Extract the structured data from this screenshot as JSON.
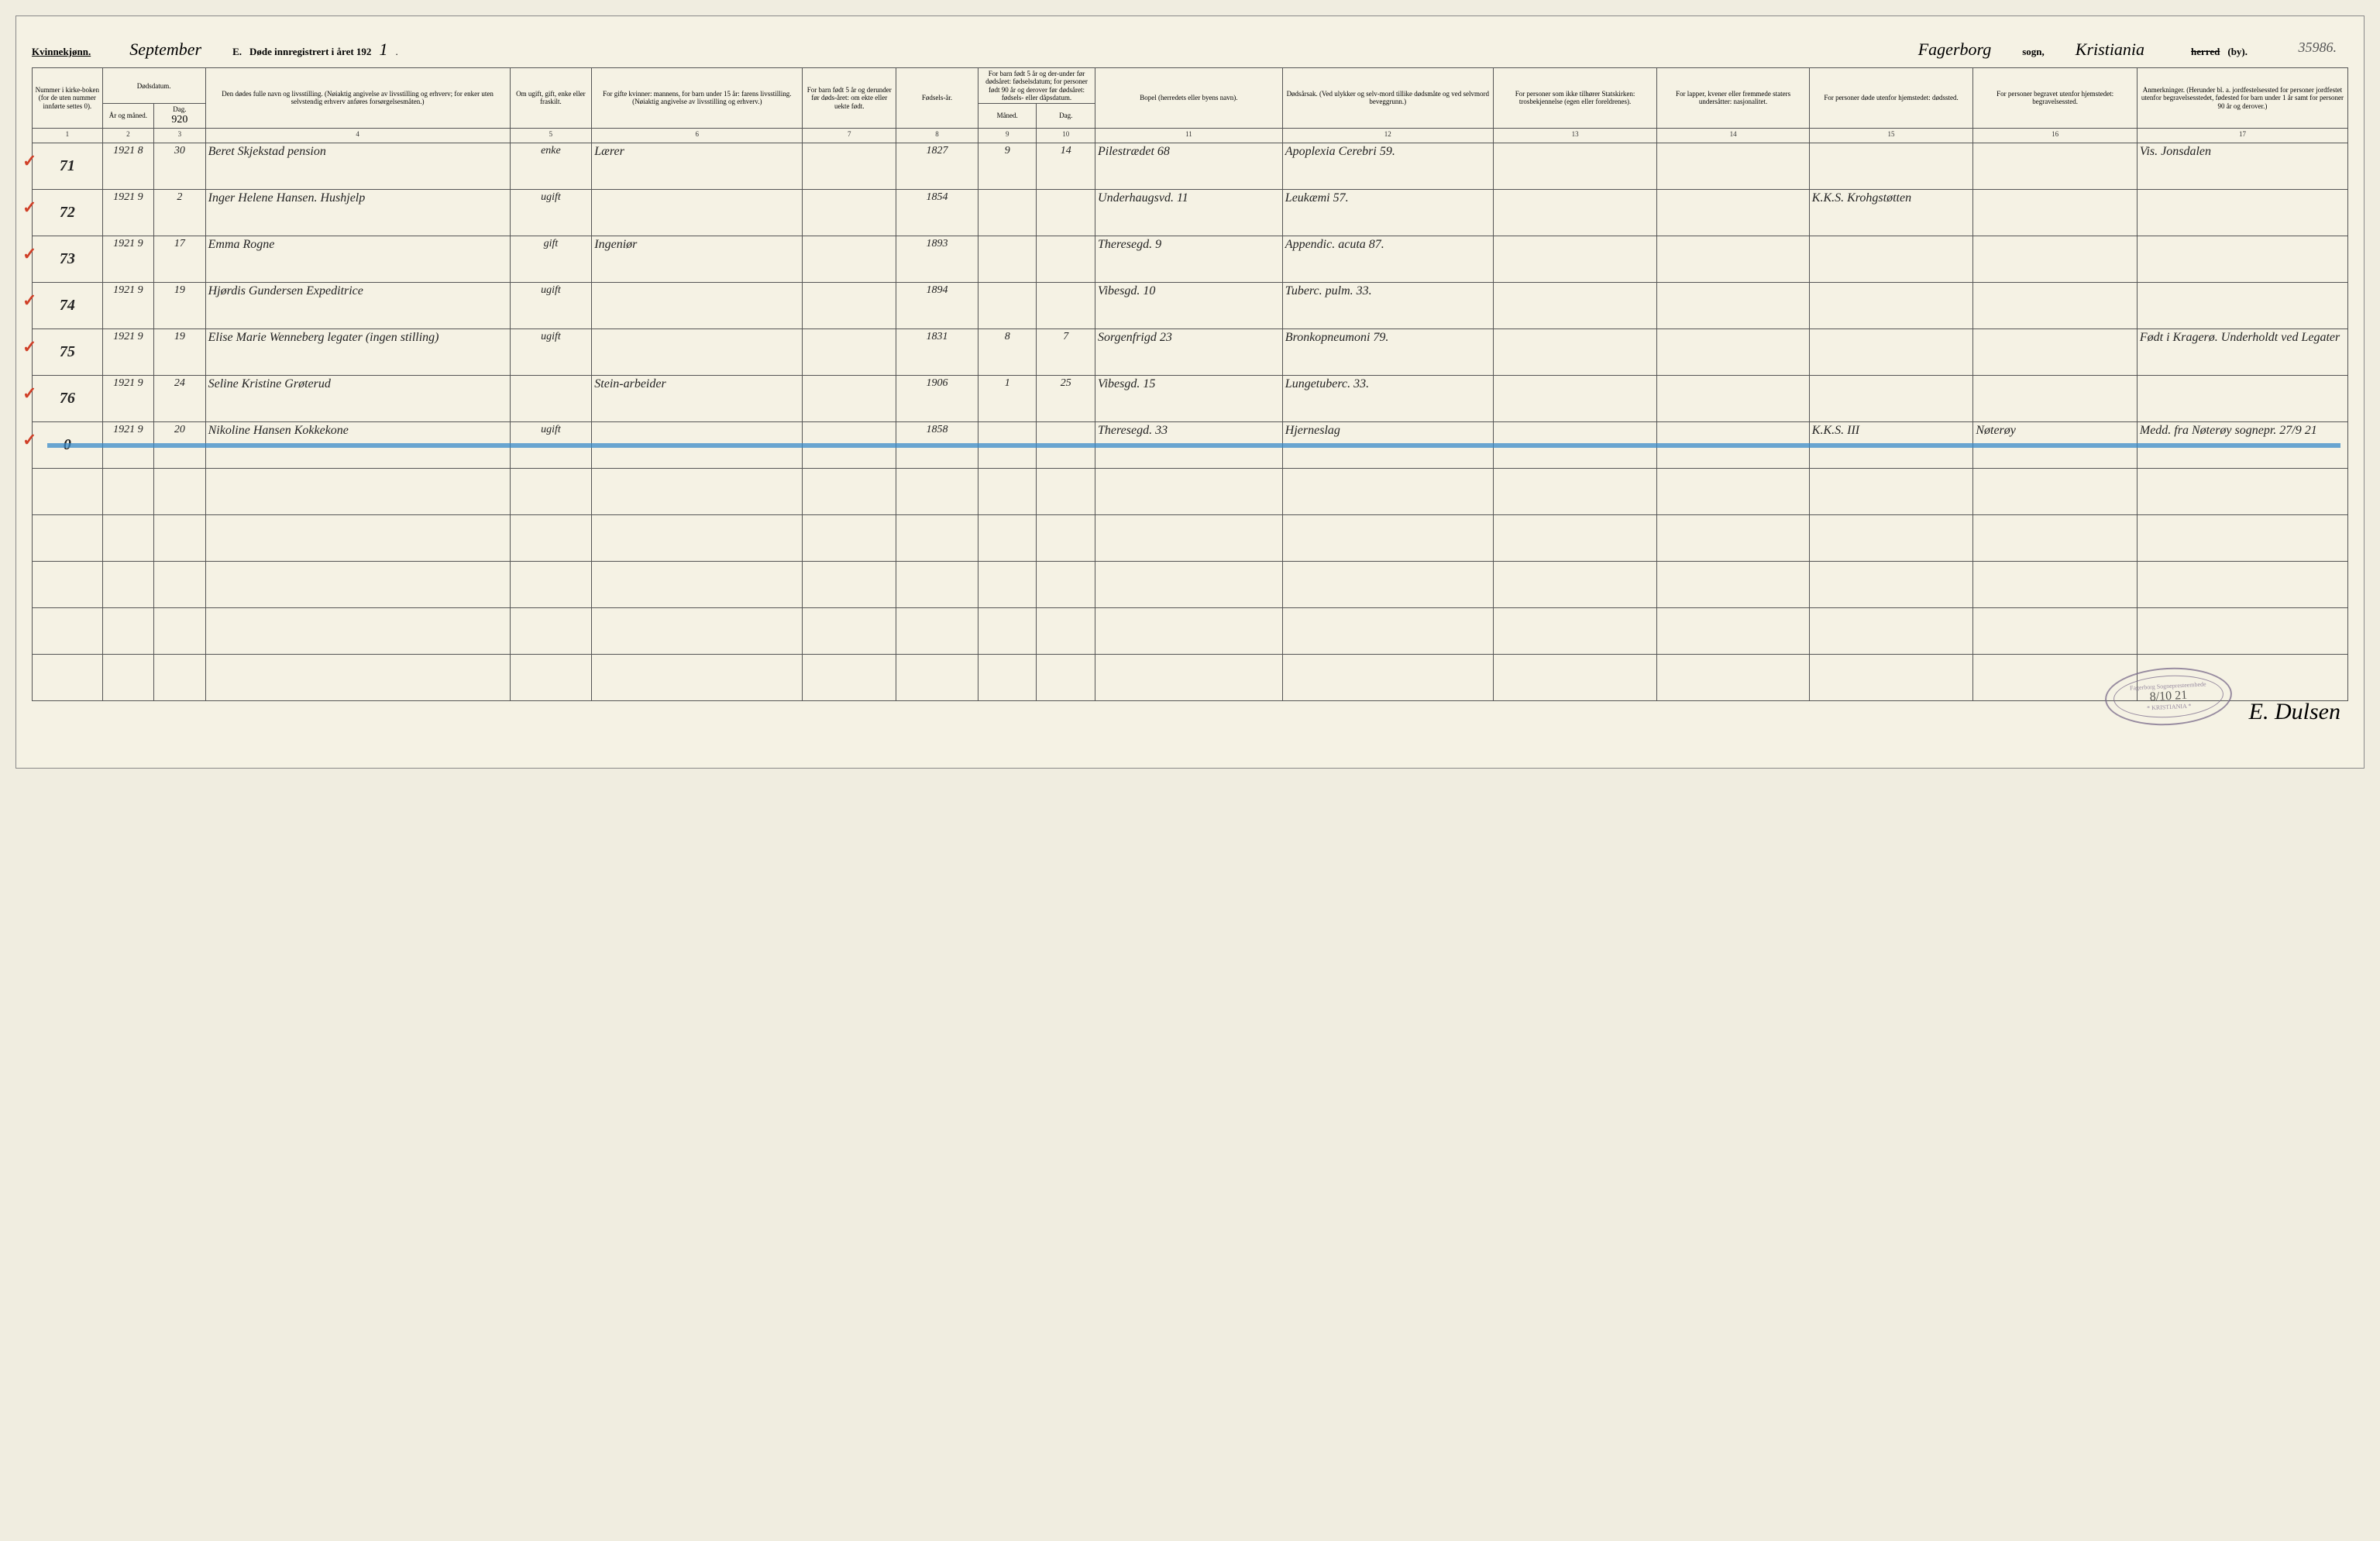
{
  "header": {
    "gender_label": "Kvinnekjønn.",
    "month_handwritten": "September",
    "title_prefix": "E.",
    "title_text": "Døde innregistrert i året 192",
    "year_suffix": "1",
    "parish_handwritten": "Fagerborg",
    "parish_label": "sogn,",
    "district_handwritten": "Kristiania",
    "herred_strike": "herred",
    "by_suffix": "(by).",
    "page_number": "35986."
  },
  "column_headers": {
    "c1": "Nummer i kirke-boken (for de uten nummer innførte settes 0).",
    "c2_3_top": "Dødsdatum.",
    "c2": "År og måned.",
    "c3": "Dag.",
    "c3_hand": "920",
    "c4": "Den dødes fulle navn og livsstilling. (Nøiaktig angivelse av livsstilling og erhverv; for enker uten selvstendig erhverv anføres forsørgelsesmåten.)",
    "c5": "Om ugift, gift, enke eller fraskilt.",
    "c6": "For gifte kvinner: mannens, for barn under 15 år: farens livsstilling. (Nøiaktig angivelse av livsstilling og erhverv.)",
    "c7": "For barn født 5 år og derunder før døds-året: om ekte eller uekte født.",
    "c8": "Fødsels-år.",
    "c9_10_top": "For barn født 5 år og der-under før dødsåret: fødselsdatum; for personer født 90 år og derover før dødsåret: fødsels- eller dåpsdatum.",
    "c9": "Måned.",
    "c10": "Dag.",
    "c11": "Bopel (herredets eller byens navn).",
    "c12": "Dødsårsak. (Ved ulykker og selv-mord tillike dødsmåte og ved selvmord beveggrunn.)",
    "c13": "For personer som ikke tilhører Statskirken: trosbekjennelse (egen eller foreldrenes).",
    "c14": "For lapper, kvener eller fremmede staters undersåtter: nasjonalitet.",
    "c15": "For personer døde utenfor hjemstedet: dødssted.",
    "c16": "For personer begravet utenfor hjemstedet: begravelsessted.",
    "c17": "Anmerkninger. (Herunder bl. a. jordfestelsessted for personer jordfestet utenfor begravelsesstedet, fødested for barn under 1 år samt for personer 90 år og derover.)"
  },
  "colnums": [
    "1",
    "2",
    "3",
    "4",
    "5",
    "6",
    "7",
    "8",
    "9",
    "10",
    "11",
    "12",
    "13",
    "14",
    "15",
    "16",
    "17"
  ],
  "rows": [
    {
      "num": "71",
      "yr_mo": "1921 8",
      "day": "30",
      "name": "Beret Skjekstad   pension",
      "status": "enke",
      "spouse": "Lærer",
      "c7": "",
      "birth": "1827",
      "m": "9",
      "d": "14",
      "residence": "Pilestrædet 68",
      "cause": "Apoplexia Cerebri  59.",
      "c13": "",
      "c14": "",
      "c15": "",
      "c16": "",
      "remarks": "Vis. Jonsdalen",
      "tick": true
    },
    {
      "num": "72",
      "yr_mo": "1921 9",
      "day": "2",
      "name": "Inger Helene Hansen. Hushjelp",
      "status": "ugift",
      "spouse": "",
      "c7": "",
      "birth": "1854",
      "m": "",
      "d": "",
      "residence": "Underhaugsvd. 11",
      "cause": "Leukæmi   57.",
      "c13": "",
      "c14": "",
      "c15": "K.K.S. Krohgstøtten",
      "c16": "",
      "remarks": "",
      "tick": true
    },
    {
      "num": "73",
      "yr_mo": "1921 9",
      "day": "17",
      "name": "Emma Rogne",
      "status": "gift",
      "spouse": "Ingeniør",
      "c7": "",
      "birth": "1893",
      "m": "",
      "d": "",
      "residence": "Theresegd. 9",
      "cause": "Appendic. acuta  87.",
      "c13": "",
      "c14": "",
      "c15": "",
      "c16": "",
      "remarks": "",
      "tick": true
    },
    {
      "num": "74",
      "yr_mo": "1921 9",
      "day": "19",
      "name": "Hjørdis Gundersen  Expeditrice",
      "status": "ugift",
      "spouse": "",
      "c7": "",
      "birth": "1894",
      "m": "",
      "d": "",
      "residence": "Vibesgd. 10",
      "cause": "Tuberc. pulm.  33.",
      "c13": "",
      "c14": "",
      "c15": "",
      "c16": "",
      "remarks": "",
      "tick": true
    },
    {
      "num": "75",
      "yr_mo": "1921 9",
      "day": "19",
      "name": "Elise Marie Wenneberg  legater (ingen stilling)",
      "status": "ugift",
      "spouse": "",
      "c7": "",
      "birth": "1831",
      "m": "8",
      "d": "7",
      "residence": "Sorgenfrigd 23",
      "cause": "Bronkopneumoni  79.",
      "c13": "",
      "c14": "",
      "c15": "",
      "c16": "",
      "remarks": "Født i Kragerø. Underholdt ved Legater",
      "tick": true
    },
    {
      "num": "76",
      "yr_mo": "1921 9",
      "day": "24",
      "name": "Seline Kristine Grøterud",
      "status": "",
      "spouse": "Stein-arbeider",
      "c7": "",
      "birth": "1906",
      "m": "1",
      "d": "25",
      "residence": "Vibesgd. 15",
      "cause": "Lungetuberc.  33.",
      "c13": "",
      "c14": "",
      "c15": "",
      "c16": "",
      "remarks": "",
      "tick": true
    },
    {
      "num": "0",
      "yr_mo": "1921 9",
      "day": "20",
      "name": "Nikoline Hansen  Kokkekone",
      "status": "ugift",
      "spouse": "",
      "c7": "",
      "birth": "1858",
      "m": "",
      "d": "",
      "residence": "Theresegd. 33",
      "cause": "Hjerneslag",
      "c13": "",
      "c14": "",
      "c15": "K.K.S. III",
      "c16": "Nøterøy",
      "remarks": "Medd. fra Nøterøy sognepr. 27/9 21",
      "tick": true,
      "struck": true
    }
  ],
  "empty_row_count": 5,
  "stamp": {
    "top_text": "Fagerborg Sognepresteembede",
    "date": "8/10 21",
    "bottom_text": "* KRISTIANIA *"
  },
  "signature": "E. Dulsen",
  "colors": {
    "page_bg": "#f5f2e4",
    "border": "#555555",
    "tick": "#d04028",
    "blue_line": "#3a8bc9",
    "stamp": "#7a6a8a"
  }
}
